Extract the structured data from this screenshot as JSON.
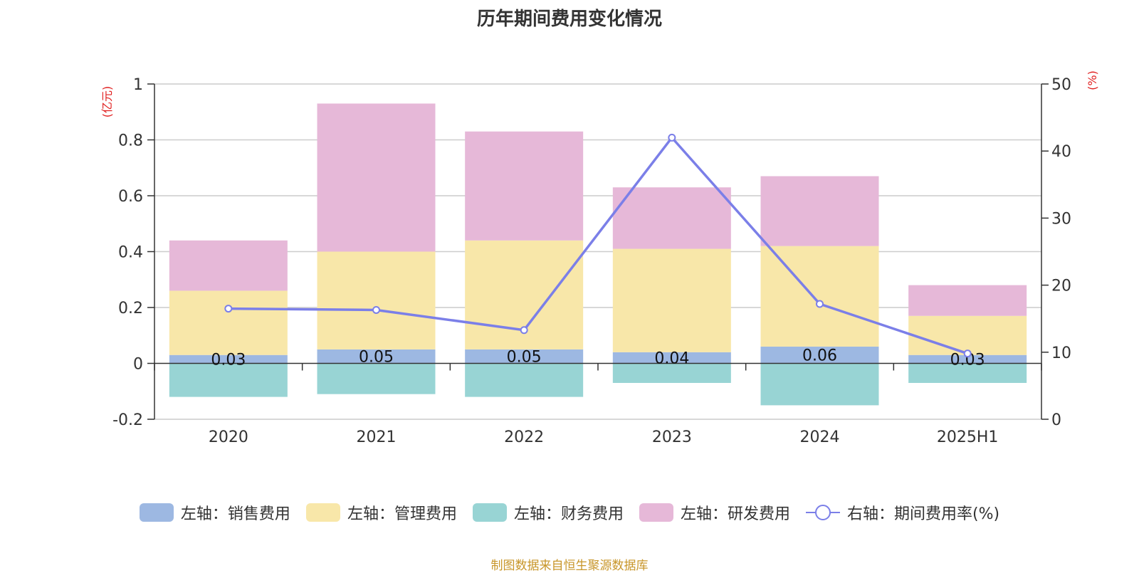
{
  "title": "历年期间费用变化情况",
  "source": "制图数据来自恒生聚源数据库",
  "chart_data": {
    "type": "bar",
    "stacked": true,
    "categories": [
      "2020",
      "2021",
      "2022",
      "2023",
      "2024",
      "2025H1"
    ],
    "y_left": {
      "unit_label": "(亿元)",
      "lim": [
        -0.2,
        1
      ],
      "ticks": [
        "-0.2",
        "0",
        "0.2",
        "0.4",
        "0.6",
        "0.8",
        "1"
      ]
    },
    "y_right": {
      "unit_label": "(%)",
      "lim": [
        0,
        50
      ],
      "ticks": [
        "0",
        "10",
        "20",
        "30",
        "40",
        "50"
      ]
    },
    "grid": true,
    "legend_position": "bottom",
    "series": [
      {
        "name": "左轴：销售费用",
        "type": "bar",
        "axis": "left",
        "color": "#9db8e2",
        "values": [
          0.03,
          0.05,
          0.05,
          0.04,
          0.06,
          0.03
        ],
        "data_labels": [
          "0.03",
          "0.05",
          "0.05",
          "0.04",
          "0.06",
          "0.03"
        ]
      },
      {
        "name": "左轴：管理费用",
        "type": "bar",
        "axis": "left",
        "color": "#f8e7a9",
        "values": [
          0.23,
          0.35,
          0.39,
          0.37,
          0.36,
          0.14
        ]
      },
      {
        "name": "左轴：财务费用",
        "type": "bar",
        "axis": "left",
        "color": "#98d4d4",
        "values": [
          -0.12,
          -0.11,
          -0.12,
          -0.07,
          -0.15,
          -0.07
        ]
      },
      {
        "name": "左轴：研发费用",
        "type": "bar",
        "axis": "left",
        "color": "#e6b8d8",
        "values": [
          0.18,
          0.53,
          0.39,
          0.22,
          0.25,
          0.11
        ]
      },
      {
        "name": "右轴：期间费用率(%)",
        "type": "line",
        "axis": "right",
        "color": "#7b7fe8",
        "values": [
          16.5,
          16.3,
          13.3,
          42.0,
          17.2,
          9.8
        ]
      }
    ]
  }
}
